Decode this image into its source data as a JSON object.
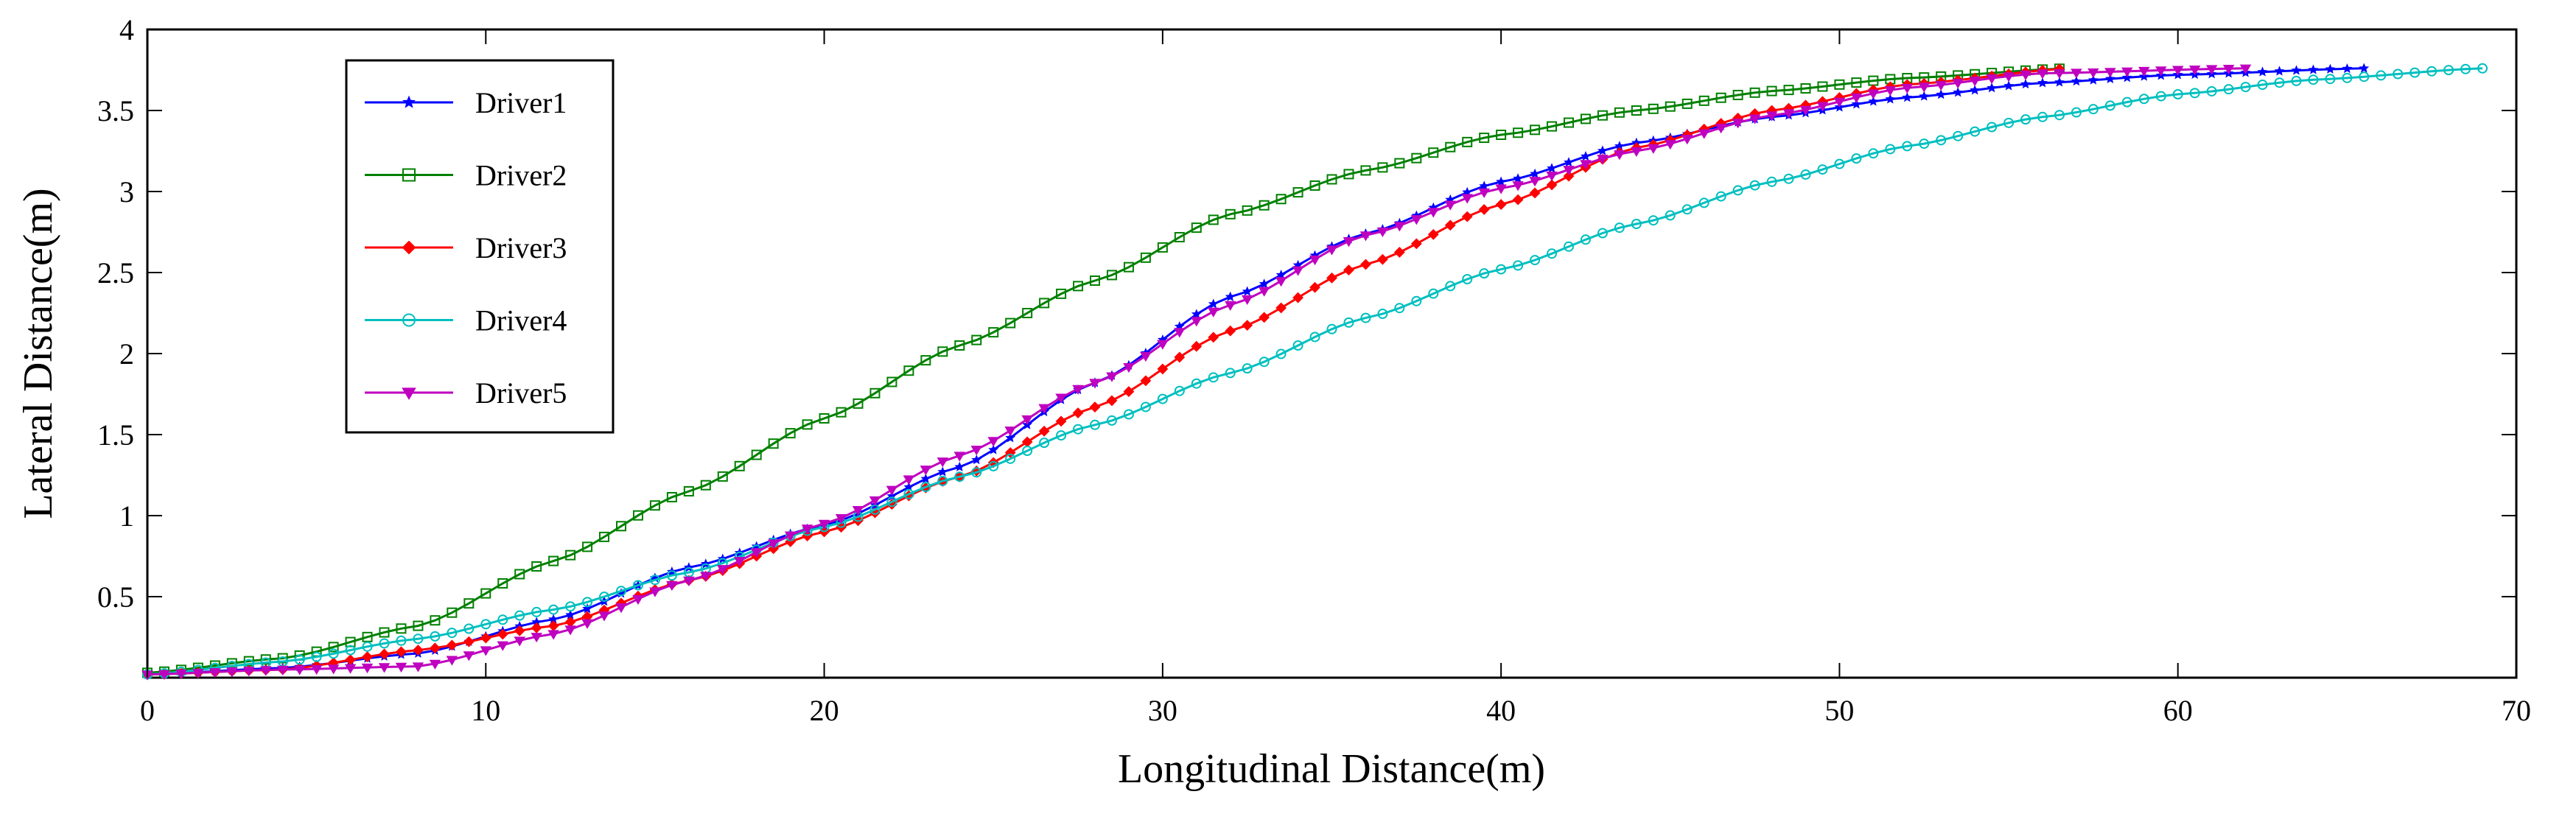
{
  "chart_data": {
    "type": "line",
    "title": "",
    "xlabel": "Longitudinal Distance(m)",
    "ylabel": "Lateral Distance(m)",
    "xlim": [
      0,
      70
    ],
    "ylim": [
      0,
      4
    ],
    "xticks": [
      0,
      10,
      20,
      30,
      40,
      50,
      60,
      70
    ],
    "yticks": [
      0.5,
      1,
      1.5,
      2,
      2.5,
      3,
      3.5,
      4
    ],
    "ytick_labels": [
      "0.5",
      "1",
      "1.5",
      "2",
      "2.5",
      "3",
      "3.5",
      "4"
    ],
    "grid": false,
    "legend_position": "top-left",
    "series": [
      {
        "name": "Driver1",
        "color": "#0000ff",
        "marker": "star",
        "points": [
          [
            0,
            0.02
          ],
          [
            4,
            0.06
          ],
          [
            8,
            0.15
          ],
          [
            12,
            0.36
          ],
          [
            16,
            0.68
          ],
          [
            20,
            0.94
          ],
          [
            24,
            1.3
          ],
          [
            28,
            1.82
          ],
          [
            32,
            2.35
          ],
          [
            36,
            2.74
          ],
          [
            40,
            3.06
          ],
          [
            44,
            3.3
          ],
          [
            48,
            3.46
          ],
          [
            52,
            3.58
          ],
          [
            56,
            3.67
          ],
          [
            60,
            3.72
          ],
          [
            65.5,
            3.76
          ]
        ]
      },
      {
        "name": "Driver2",
        "color": "#008000",
        "marker": "square",
        "points": [
          [
            0,
            0.03
          ],
          [
            4,
            0.12
          ],
          [
            8,
            0.32
          ],
          [
            12,
            0.72
          ],
          [
            16,
            1.15
          ],
          [
            20,
            1.6
          ],
          [
            24,
            2.05
          ],
          [
            28,
            2.45
          ],
          [
            32,
            2.86
          ],
          [
            36,
            3.13
          ],
          [
            40,
            3.35
          ],
          [
            44,
            3.5
          ],
          [
            48,
            3.62
          ],
          [
            52,
            3.7
          ],
          [
            56.8,
            3.76
          ]
        ]
      },
      {
        "name": "Driver3",
        "color": "#ff0000",
        "marker": "diamond",
        "points": [
          [
            0,
            0.02
          ],
          [
            4,
            0.05
          ],
          [
            8,
            0.17
          ],
          [
            12,
            0.32
          ],
          [
            16,
            0.6
          ],
          [
            20,
            0.9
          ],
          [
            24,
            1.24
          ],
          [
            28,
            1.67
          ],
          [
            32,
            2.14
          ],
          [
            36,
            2.55
          ],
          [
            40,
            2.92
          ],
          [
            44,
            3.27
          ],
          [
            48,
            3.5
          ],
          [
            52,
            3.66
          ],
          [
            56.8,
            3.76
          ]
        ]
      },
      {
        "name": "Driver4",
        "color": "#00bfbf",
        "marker": "circle",
        "points": [
          [
            0,
            0.02
          ],
          [
            4,
            0.1
          ],
          [
            8,
            0.24
          ],
          [
            12,
            0.42
          ],
          [
            16,
            0.65
          ],
          [
            20,
            0.93
          ],
          [
            24,
            1.24
          ],
          [
            28,
            1.56
          ],
          [
            32,
            1.88
          ],
          [
            36,
            2.22
          ],
          [
            40,
            2.52
          ],
          [
            44,
            2.8
          ],
          [
            48,
            3.06
          ],
          [
            52,
            3.28
          ],
          [
            56,
            3.46
          ],
          [
            60,
            3.6
          ],
          [
            64,
            3.69
          ],
          [
            69,
            3.76
          ]
        ]
      },
      {
        "name": "Driver5",
        "color": "#bf00bf",
        "marker": "triangle-down",
        "points": [
          [
            0,
            0.02
          ],
          [
            4,
            0.05
          ],
          [
            8,
            0.07
          ],
          [
            12,
            0.27
          ],
          [
            16,
            0.6
          ],
          [
            20,
            0.95
          ],
          [
            24,
            1.37
          ],
          [
            28,
            1.82
          ],
          [
            32,
            2.3
          ],
          [
            36,
            2.73
          ],
          [
            40,
            3.02
          ],
          [
            44,
            3.25
          ],
          [
            48,
            3.47
          ],
          [
            52,
            3.64
          ],
          [
            56,
            3.73
          ],
          [
            62,
            3.76
          ]
        ]
      }
    ]
  }
}
